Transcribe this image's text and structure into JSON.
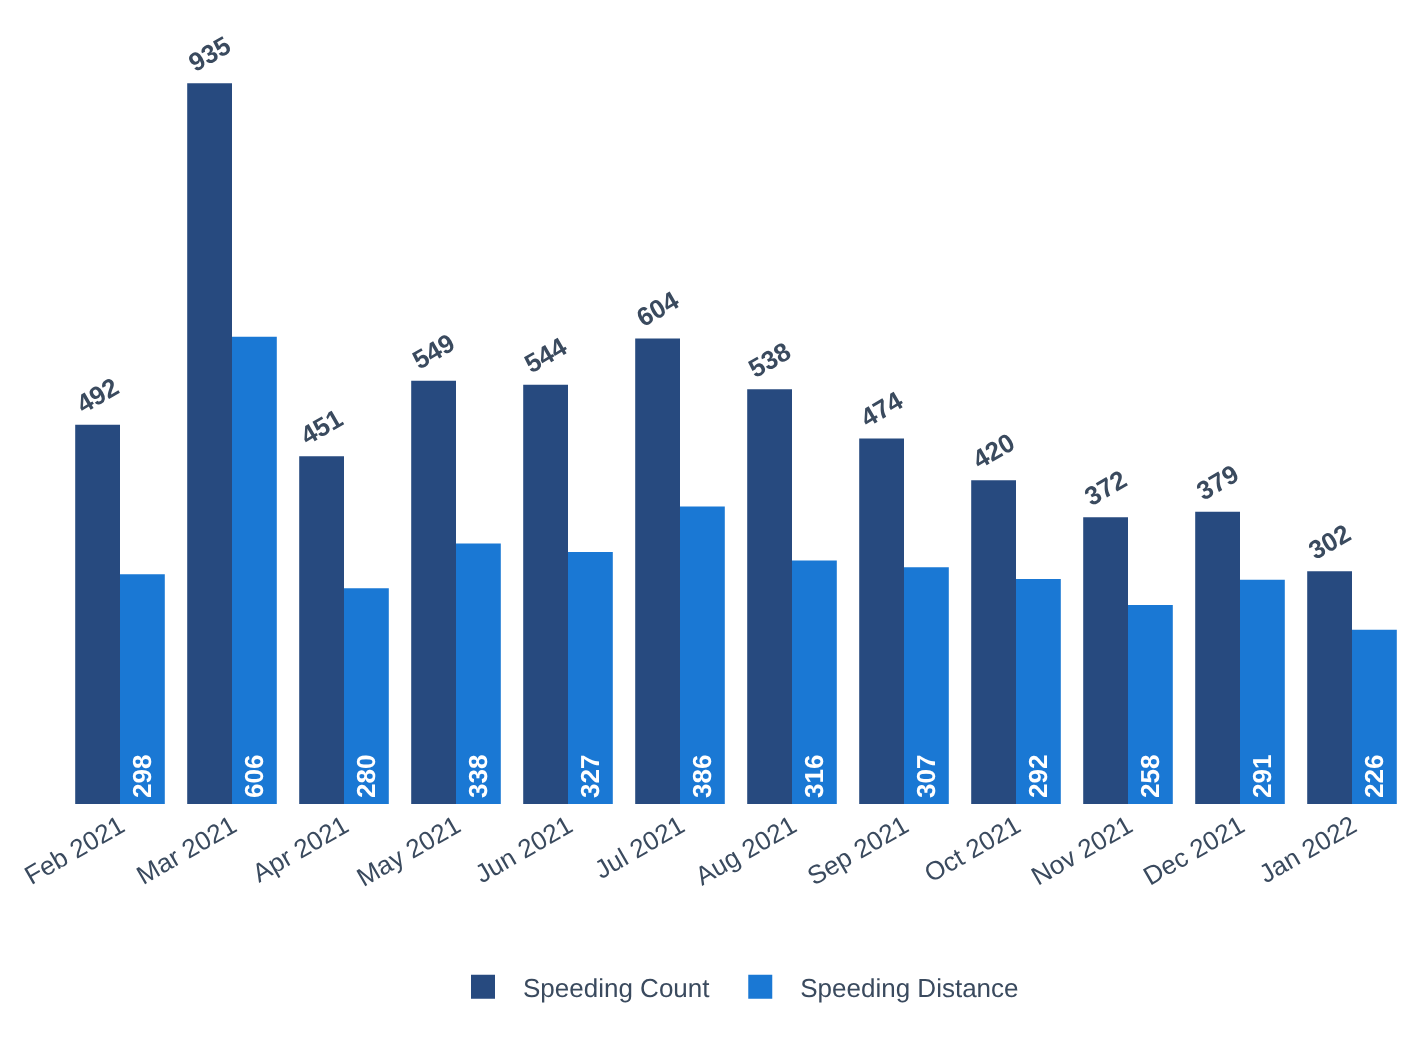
{
  "chart_data": {
    "type": "bar",
    "categories": [
      "Feb 2021",
      "Mar 2021",
      "Apr 2021",
      "May 2021",
      "Jun 2021",
      "Jul 2021",
      "Aug 2021",
      "Sep 2021",
      "Oct 2021",
      "Nov 2021",
      "Dec 2021",
      "Jan 2022"
    ],
    "series": [
      {
        "name": "Speeding Count",
        "color": "#274a7f",
        "values": [
          492,
          935,
          451,
          549,
          544,
          604,
          538,
          474,
          420,
          372,
          379,
          302
        ]
      },
      {
        "name": "Speeding Distance",
        "color": "#1a78d4",
        "values": [
          298,
          606,
          280,
          338,
          327,
          386,
          316,
          307,
          292,
          258,
          291,
          226
        ]
      }
    ],
    "data_labels": true,
    "legend": "bottom"
  }
}
